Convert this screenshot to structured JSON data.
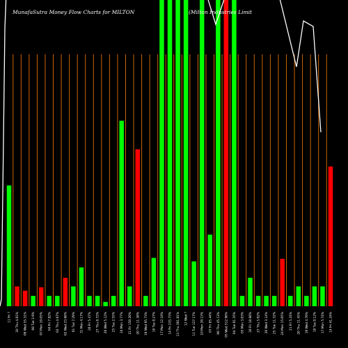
{
  "header": {
    "left": "MunafaSutra  Money Flow  Charts for MILTON",
    "right": "(Milton  Industries  Limit"
  },
  "chart_data": {
    "type": "bar",
    "title": "MunafaSutra Money Flow Charts for MILTON",
    "subtitle": "(Milton Industries Limit",
    "grid": "vertical",
    "ylim": [
      0,
      355
    ],
    "categories": [
      "11 Fri  ?",
      "10 Thu  4.81%",
      "09 Wed  55.31%",
      "08 Tue  3.9%",
      "07 Mon  10.05%",
      "04 Fri  7.82%",
      "03 Thu  4.67%",
      "02 Wed  23.66%",
      "01 Tue  7.29%",
      "31 Mon  4.17%",
      "28 Fri  5.47%",
      "27 Thu  8.72%",
      "26 Wed  5.12%",
      "25 Tue  2.55%",
      "24 Mon  3.77%",
      "21 Fri  150.26%",
      "20 Thu  11.38%",
      "19 Wed  95.73%",
      "18 Tue  8.27%",
      "17 Mon  12.16%",
      "14 Fri  235.73%",
      "13 Thu  361.81%",
      "12 Wed  ?",
      "11 Tue  127.17%",
      "10 Mon  20.15%",
      "07 Fri  85.44%",
      "06 Thu  45.13%",
      "05 Wed  512.96%",
      "04 Tue  91.35%",
      "03 Mon  3.83%",
      "28 Fri  18.88%",
      "27 Thu  5.02%",
      "26 Wed  3.14%",
      "25 Tue  11.32%",
      "24 Mon  15.05%",
      "21 Fri  5.24%",
      "20 Thu  11.45%",
      "19 Wed  4.76%",
      "18 Tue  9.12%",
      "17 Mon  5.74%",
      "14 Fri  41.24%"
    ],
    "series": [
      {
        "values": [
          140,
          23,
          18,
          12,
          22,
          12,
          12,
          33,
          23,
          45,
          12,
          12,
          5,
          12,
          215,
          23,
          182,
          12,
          56,
          370,
          370,
          370,
          370,
          52,
          370,
          83,
          370,
          370,
          370,
          12,
          33,
          12,
          12,
          12,
          55,
          12,
          23,
          12,
          23,
          23,
          162
        ],
        "colors": [
          "green",
          "red",
          "red",
          "green",
          "red",
          "green",
          "green",
          "red",
          "green",
          "green",
          "green",
          "green",
          "green",
          "green",
          "green",
          "green",
          "red",
          "green",
          "green",
          "green",
          "green",
          "green",
          "green",
          "green",
          "green",
          "green",
          "green",
          "red",
          "green",
          "green",
          "green",
          "green",
          "green",
          "green",
          "red",
          "green",
          "green",
          "green",
          "green",
          "green",
          "red"
        ]
      }
    ],
    "price_line": {
      "color": "#ffffff"
    },
    "colors": {
      "background": "#000000",
      "up": "#00ff00",
      "down": "#ff0000",
      "grid": "#cc6600",
      "text": "#ffffff"
    }
  }
}
